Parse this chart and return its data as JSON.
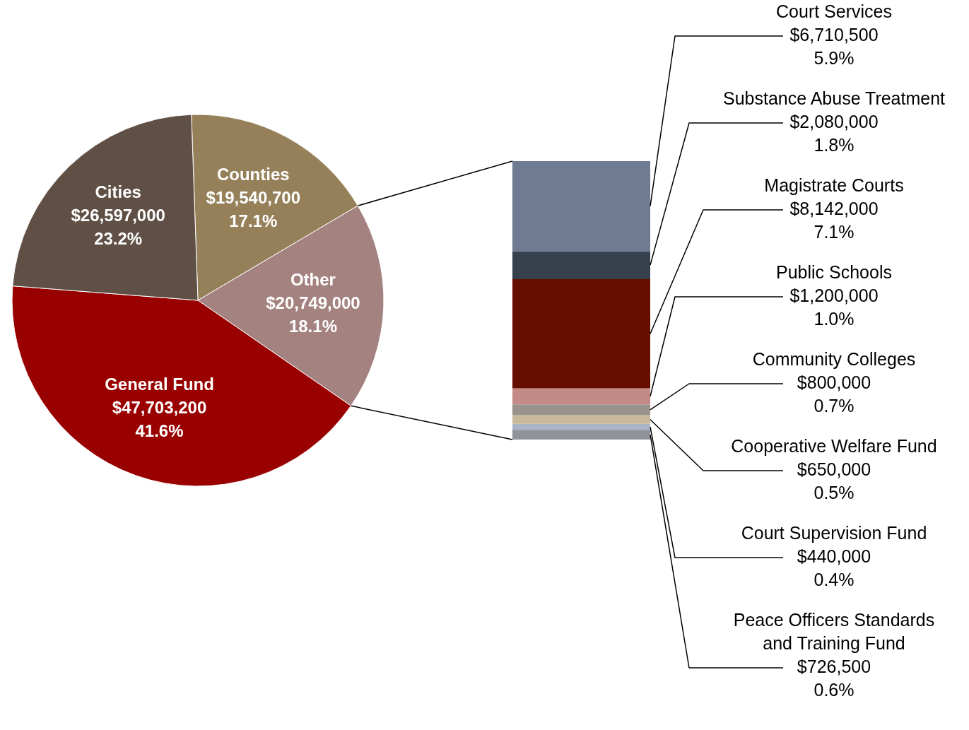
{
  "chart_data": [
    {
      "type": "pie",
      "categories": [
        "Counties",
        "Other",
        "General Fund",
        "Cities"
      ],
      "values": [
        19540700,
        20749000,
        47703200,
        26597000
      ],
      "colors": [
        "#958059",
        "#a3827f",
        "#990000",
        "#5f4f45"
      ],
      "value_labels": [
        "$19,540,700\n17.1%",
        "$20,749,000\n18.1%",
        "$47,703,200\n41.6%",
        "$26,597,000\n23.2%"
      ]
    },
    {
      "type": "bar",
      "stacked": true,
      "categories": [
        null
      ],
      "series": [
        {
          "name": "Peace Officers Standards and Training Fund",
          "color": "#8f9298",
          "values": [
            726500
          ],
          "value_labels": [
            "$726,500\n0.6%"
          ]
        },
        {
          "name": "Court Supervision Fund",
          "color": "#a9b4c8",
          "values": [
            440000
          ],
          "value_labels": [
            "$440,000\n0.4%"
          ]
        },
        {
          "name": "Cooperative Welfare Fund",
          "color": "#c9b99a",
          "values": [
            650000
          ],
          "value_labels": [
            "$650,000\n0.5%"
          ]
        },
        {
          "name": "Community Colleges",
          "color": "#9a928c",
          "values": [
            800000
          ],
          "value_labels": [
            "$800,000\n0.7%"
          ]
        },
        {
          "name": "Public Schools",
          "color": "#c48a87",
          "values": [
            1200000
          ],
          "value_labels": [
            "$1,200,000\n1.0%"
          ]
        },
        {
          "name": "Magistrate Courts",
          "color": "#660e00",
          "values": [
            8142000
          ],
          "value_labels": [
            "$8,142,000\n7.1%"
          ]
        },
        {
          "name": "Substance Abuse Treatment",
          "color": "#37404d",
          "values": [
            2080000
          ],
          "value_labels": [
            "$2,080,000\n1.8%"
          ]
        },
        {
          "name": "Court Services",
          "color": "#6e7b93",
          "values": [
            6710500
          ],
          "value_labels": [
            "$6,710,500\n5.9%"
          ]
        }
      ]
    }
  ]
}
